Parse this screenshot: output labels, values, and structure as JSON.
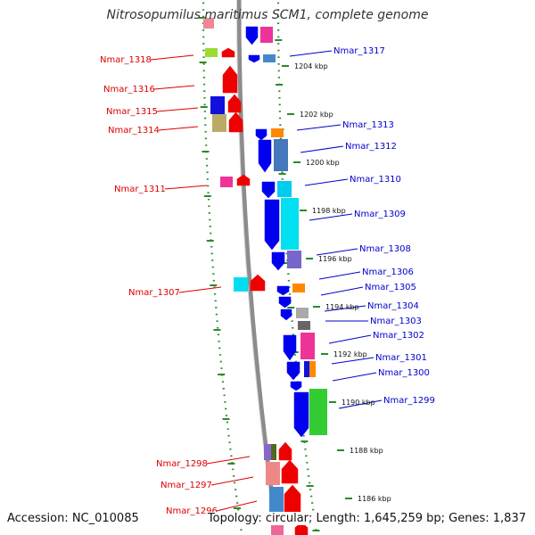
{
  "title": "Nitrosopumilus maritimus SCM1, complete genome",
  "accession": "Accession: NC_010085",
  "summary": "Topology: circular; Length: 1,645,259 bp; Genes: 1,837",
  "colors": {
    "reverse_label": "#dd0000",
    "forward_label": "#0000cc",
    "backbone": "#8c8c8c",
    "tick_track": "#2a8a2a",
    "forward_gene": "#0000ee",
    "reverse_gene": "#ee0000"
  },
  "reverse_gene_labels": [
    "Nmar_1318",
    "Nmar_1316",
    "Nmar_1315",
    "Nmar_1314",
    "Nmar_1311",
    "Nmar_1307",
    "Nmar_1298",
    "Nmar_1297",
    "Nmar_1296"
  ],
  "forward_gene_labels": [
    "Nmar_1317",
    "Nmar_1313",
    "Nmar_1312",
    "Nmar_1310",
    "Nmar_1309",
    "Nmar_1308",
    "Nmar_1306",
    "Nmar_1305",
    "Nmar_1304",
    "Nmar_1303",
    "Nmar_1302",
    "Nmar_1301",
    "Nmar_1300",
    "Nmar_1299"
  ],
  "position_ticks": [
    "1204 kbp",
    "1202 kbp",
    "1200 kbp",
    "1198 kbp",
    "1196 kbp",
    "1194 kbp",
    "1192 kbp",
    "1190 kbp",
    "1188 kbp",
    "1186 kbp"
  ]
}
